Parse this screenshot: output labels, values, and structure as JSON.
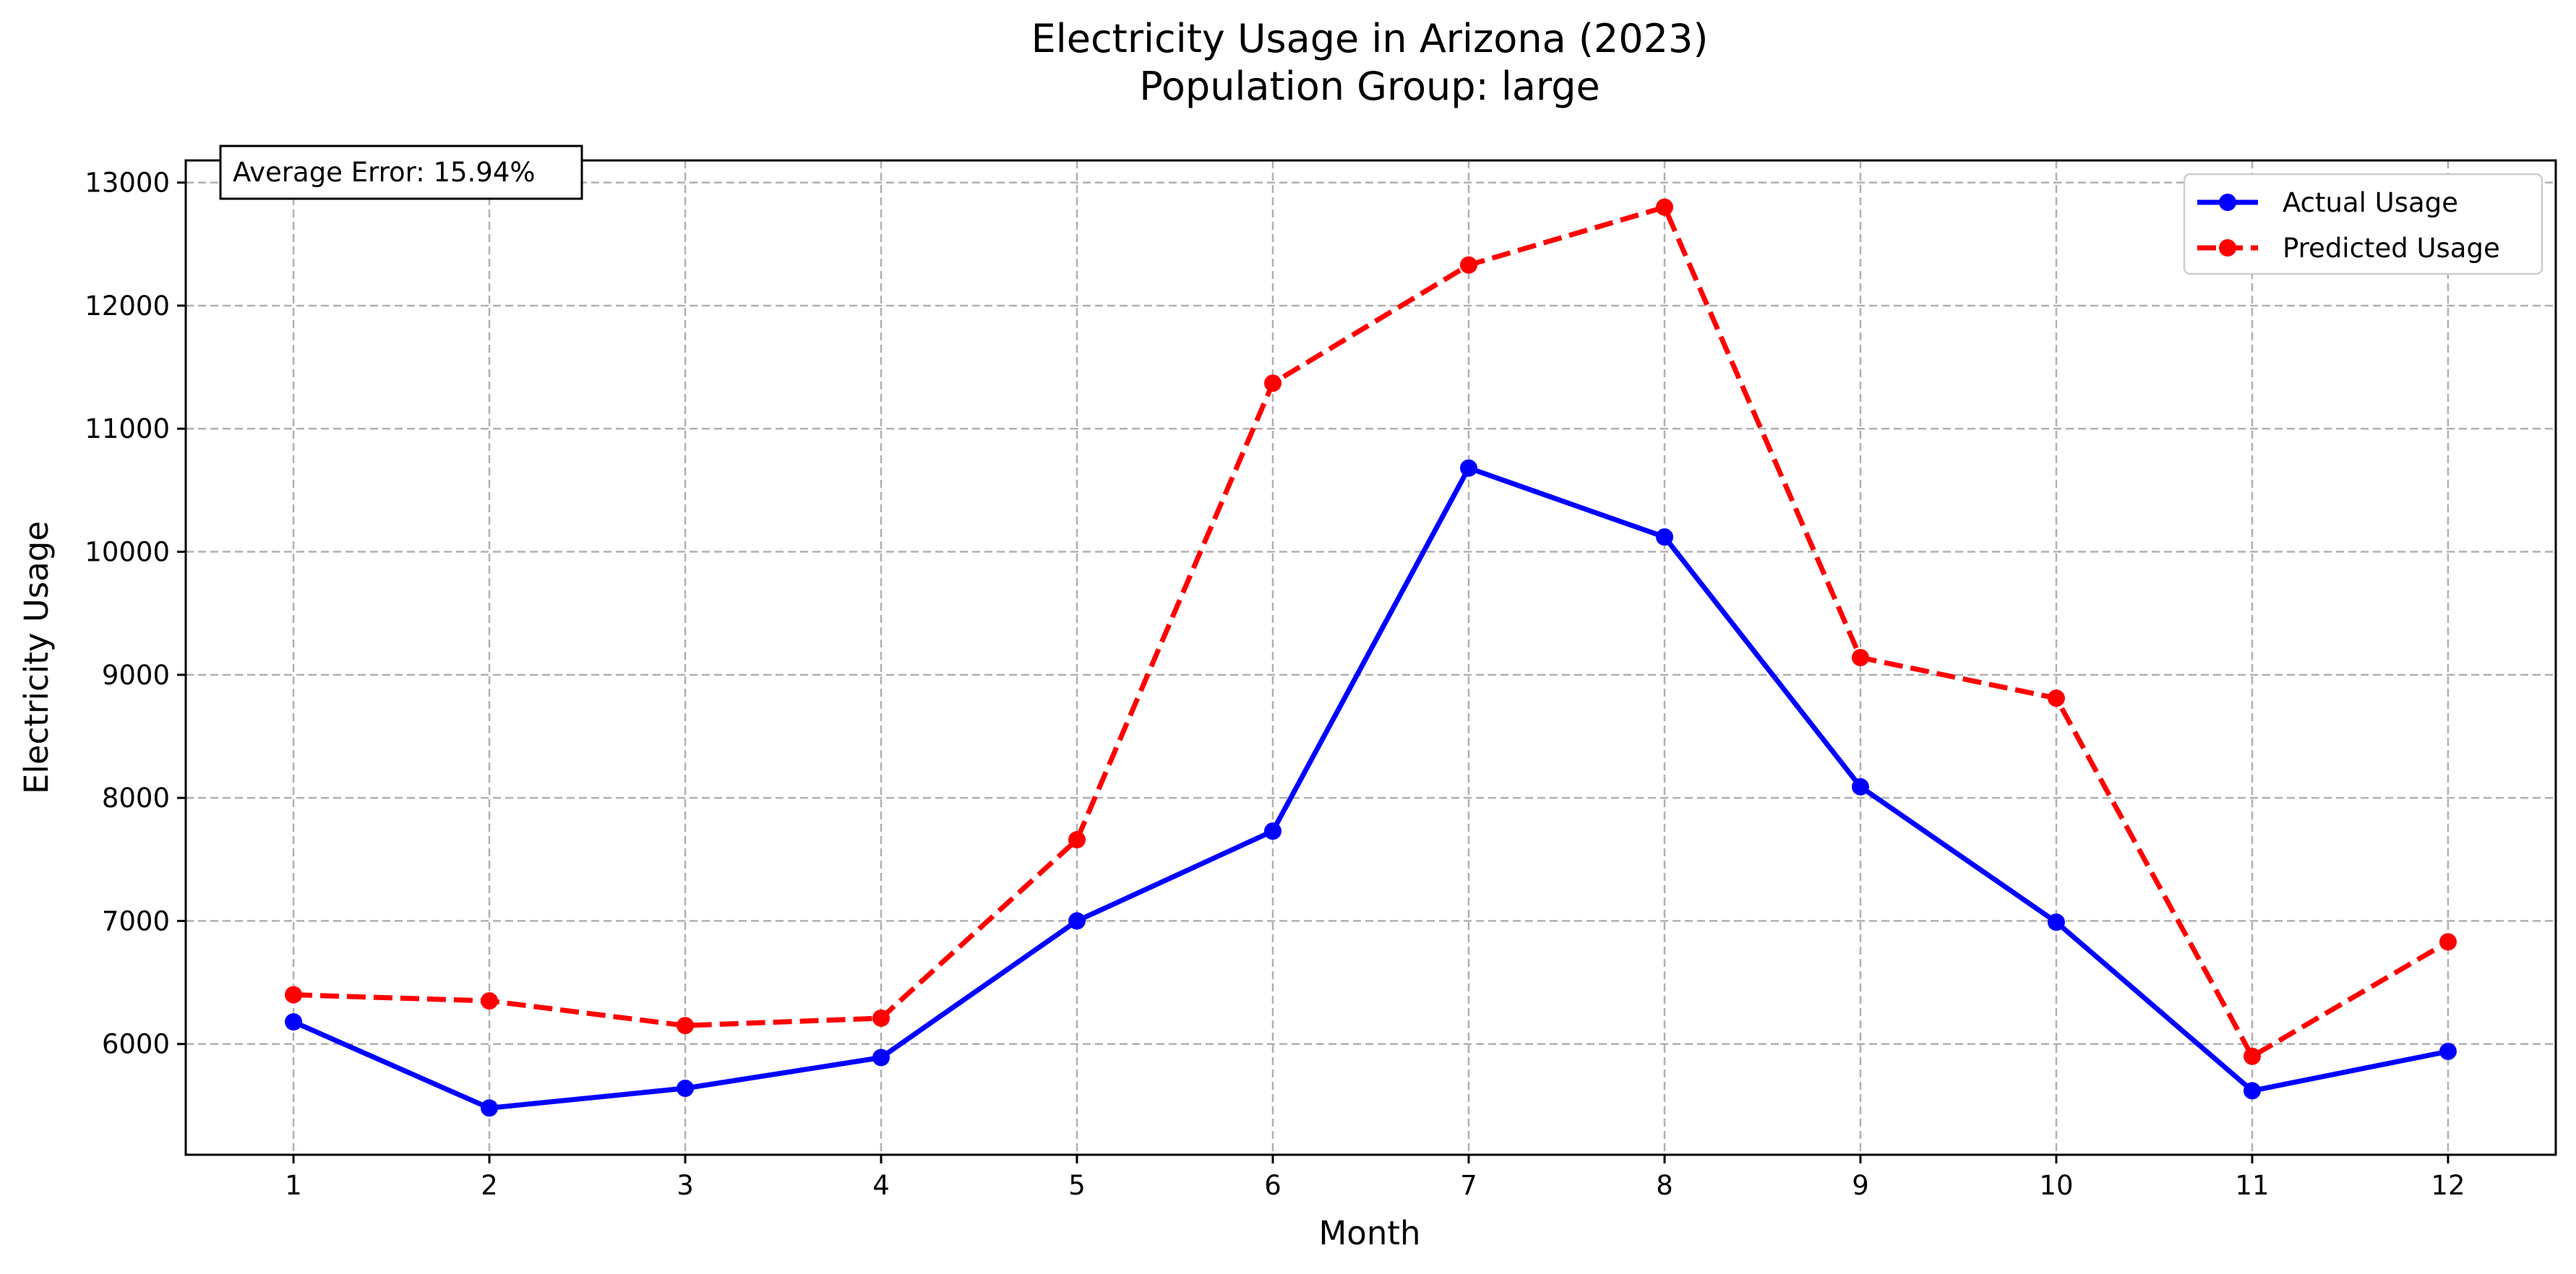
{
  "chart_data": {
    "type": "line",
    "title": "Electricity Usage in Arizona (2023)",
    "subtitle": "Population Group: large",
    "xlabel": "Month",
    "ylabel": "Electricity Usage",
    "x": [
      1,
      2,
      3,
      4,
      5,
      6,
      7,
      8,
      9,
      10,
      11,
      12
    ],
    "xlim": [
      0.45,
      12.55
    ],
    "ylim": [
      5100,
      13180
    ],
    "yticks": [
      6000,
      7000,
      8000,
      9000,
      10000,
      11000,
      12000,
      13000
    ],
    "grid": true,
    "legend_position": "top-right",
    "annotation": "Average Error: 15.94%",
    "series": [
      {
        "name": "Actual Usage",
        "color": "#0000ff",
        "style": "solid",
        "marker": "circle",
        "values": [
          6180,
          5480,
          5640,
          5890,
          7000,
          7730,
          10680,
          10120,
          8090,
          6990,
          5620,
          5940
        ]
      },
      {
        "name": "Predicted Usage",
        "color": "#ff0000",
        "style": "dashed",
        "marker": "circle",
        "values": [
          6400,
          6350,
          6150,
          6210,
          7660,
          11370,
          12330,
          12800,
          9140,
          8810,
          5900,
          6830
        ]
      }
    ]
  }
}
